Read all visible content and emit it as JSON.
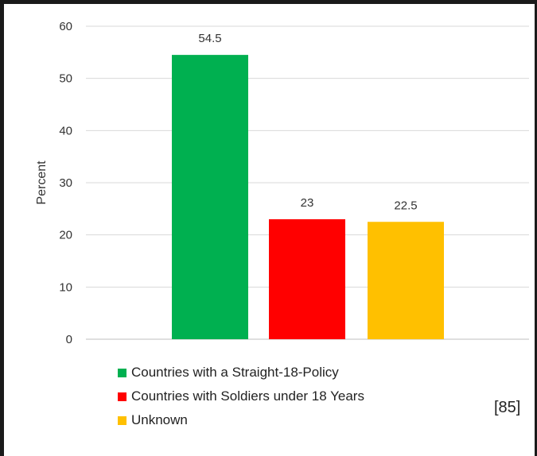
{
  "chart_data": {
    "type": "bar",
    "categories": [
      "Countries with a Straight-18-Policy",
      "Countries with Soldiers under 18 Years",
      "Unknown"
    ],
    "values": [
      54.5,
      23,
      22.5
    ],
    "data_labels": [
      "54.5",
      "23",
      "22.5"
    ],
    "colors": [
      "#00b050",
      "#ff0000",
      "#ffc000"
    ],
    "title": "",
    "xlabel": "",
    "ylabel": "Percent",
    "ylim": [
      0,
      60
    ],
    "yticks": [
      0,
      10,
      20,
      30,
      40,
      50,
      60
    ],
    "grid": true,
    "legend": "bottom"
  },
  "citation": "[85]"
}
